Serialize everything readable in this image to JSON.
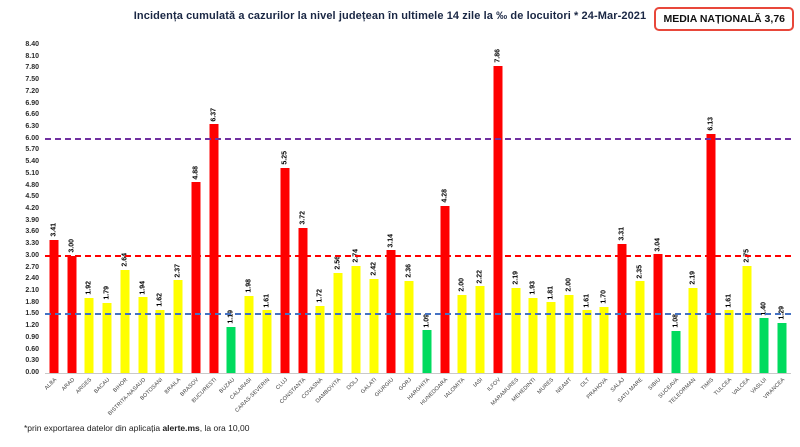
{
  "header": {
    "title": "Incidența cumulată a cazurilor la nivel județean în ultimele 14 zile la ‰ de locuitori *  24-Mar-2021",
    "media_nationala": "MEDIA NAȚIONALĂ 3,76"
  },
  "footnote": {
    "prefix": "*prin exportarea datelor din aplicația ",
    "bold": "alerte.ms",
    "suffix": ", la ora 10,00"
  },
  "chart_data": {
    "type": "bar",
    "title": "Incidența cumulată a cazurilor la nivel județean în ultimele 14 zile la ‰ de locuitori * 24-Mar-2021",
    "categories": [
      "ALBA",
      "ARAD",
      "ARGES",
      "BACAU",
      "BIHOR",
      "BISTRITA-NASAUD",
      "BOTOSANI",
      "BRAILA",
      "BRASOV",
      "BUCURESTI",
      "BUZAU",
      "CALARASI",
      "CARAS-SEVERIN",
      "CLUJ",
      "CONSTANTA",
      "COVASNA",
      "DAMBOVITA",
      "DOLJ",
      "GALATI",
      "GIURGIU",
      "GORJ",
      "HARGHITA",
      "HUNEDOARA",
      "IALOMITA",
      "IASI",
      "ILFOV",
      "MARAMURES",
      "MEHEDINTI",
      "MURES",
      "NEAMT",
      "OLT",
      "PRAHOVA",
      "SALAJ",
      "SATU MARE",
      "SIBIU",
      "SUCEAVA",
      "TELEORMAN",
      "TIMIS",
      "TULCEA",
      "VALCEA",
      "VASLUI",
      "VRANCEA"
    ],
    "values": [
      3.41,
      3.0,
      1.92,
      1.79,
      2.64,
      1.94,
      1.62,
      2.37,
      4.88,
      6.37,
      1.19,
      1.98,
      1.61,
      5.25,
      3.72,
      1.72,
      2.56,
      2.74,
      2.42,
      3.14,
      2.36,
      1.09,
      4.28,
      2.0,
      2.22,
      7.86,
      2.19,
      1.93,
      1.81,
      2.0,
      1.61,
      1.7,
      3.31,
      2.35,
      3.04,
      1.08,
      2.19,
      6.13,
      1.61,
      2.75,
      1.4,
      1.29
    ],
    "ylabel": "",
    "xlabel": "",
    "ylim": [
      0,
      8.4
    ],
    "ytick_step": 0.3,
    "grid": false,
    "legend": false,
    "bar_palette": {
      "below_1_50": "#00db5e",
      "from_1_50_to_3": "#ffff00",
      "at_or_above_3": "#fe0000"
    },
    "color_rules": {
      "green_below": 1.5,
      "red_at_or_above": 3.0
    },
    "threshold_lines": [
      {
        "value": 1.5,
        "color": "#4472c4"
      },
      {
        "value": 3.0,
        "color": "#ff0000"
      },
      {
        "value": 6.0,
        "color": "#7030a0"
      }
    ]
  }
}
